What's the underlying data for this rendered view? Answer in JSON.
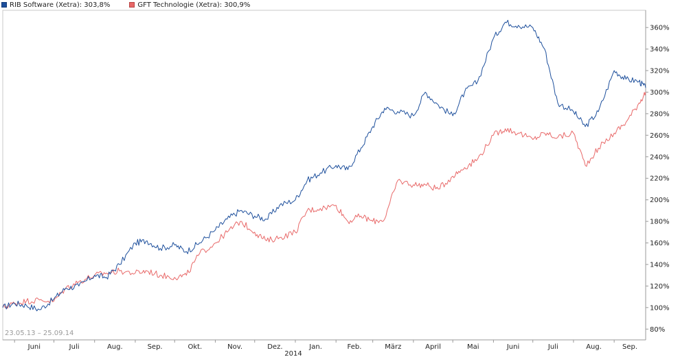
{
  "chart_data": {
    "type": "line",
    "date_range": "23.05.13 – 25.09.14",
    "x_tick_labels": [
      "Juni",
      "Juli",
      "Aug.",
      "Sep.",
      "Okt.",
      "Nov.",
      "Dez.",
      "Jan.",
      "Feb.",
      "März",
      "April",
      "Mai",
      "Juni",
      "Juli",
      "Aug.",
      "Sep."
    ],
    "year_label": "2014",
    "y_tick_labels": [
      "80%",
      "100%",
      "120%",
      "140%",
      "160%",
      "180%",
      "200%",
      "220%",
      "240%",
      "260%",
      "280%",
      "300%",
      "320%",
      "340%",
      "360%"
    ],
    "ylim": [
      70,
      376
    ],
    "grid": false,
    "legend_position": "top-left",
    "x": [
      "2013-05-23",
      "2013-06-01",
      "2013-06-10",
      "2013-06-20",
      "2013-07-01",
      "2013-07-10",
      "2013-07-20",
      "2013-08-01",
      "2013-08-10",
      "2013-08-20",
      "2013-09-01",
      "2013-09-10",
      "2013-09-20",
      "2013-10-01",
      "2013-10-10",
      "2013-10-20",
      "2013-11-01",
      "2013-11-10",
      "2013-11-20",
      "2013-12-01",
      "2013-12-10",
      "2013-12-20",
      "2014-01-01",
      "2014-01-10",
      "2014-01-20",
      "2014-02-01",
      "2014-02-10",
      "2014-02-20",
      "2014-03-01",
      "2014-03-10",
      "2014-03-20",
      "2014-04-01",
      "2014-04-10",
      "2014-04-20",
      "2014-05-01",
      "2014-05-10",
      "2014-05-20",
      "2014-06-01",
      "2014-06-10",
      "2014-06-20",
      "2014-07-01",
      "2014-07-10",
      "2014-07-20",
      "2014-08-01",
      "2014-08-10",
      "2014-08-20",
      "2014-09-01",
      "2014-09-10",
      "2014-09-20",
      "2014-09-25"
    ],
    "series": [
      {
        "name": "RIB Software (Xetra): 303,8%",
        "color": "#1d4f9c",
        "values": [
          100,
          104,
          102,
          98,
          108,
          118,
          120,
          130,
          128,
          140,
          160,
          162,
          155,
          158,
          152,
          160,
          172,
          182,
          190,
          185,
          182,
          195,
          200,
          218,
          225,
          232,
          228,
          248,
          268,
          285,
          282,
          278,
          300,
          288,
          278,
          300,
          310,
          350,
          365,
          362,
          360,
          340,
          290,
          282,
          268,
          282,
          320,
          312,
          310,
          304
        ]
      },
      {
        "name": "GFT Technologie (Xetra): 300,9%",
        "color": "#e86868",
        "values": [
          100,
          104,
          106,
          107,
          106,
          118,
          124,
          130,
          132,
          134,
          132,
          134,
          130,
          128,
          130,
          150,
          160,
          170,
          180,
          170,
          162,
          165,
          170,
          190,
          192,
          195,
          180,
          185,
          180,
          182,
          218,
          214,
          214,
          210,
          222,
          230,
          238,
          260,
          266,
          262,
          256,
          262,
          258,
          262,
          232,
          248,
          262,
          272,
          290,
          300
        ]
      }
    ]
  }
}
